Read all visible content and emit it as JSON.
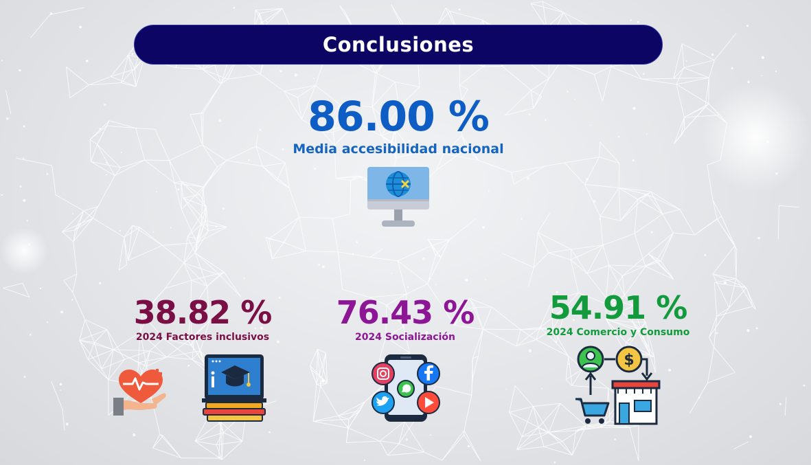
{
  "header": {
    "title": "Conclusiones"
  },
  "kpis": {
    "main": {
      "value": "86.00 %",
      "label": "Media accesibilidad nacional",
      "color": "#0d5dc4"
    },
    "factores": {
      "value": "38.82 %",
      "label": "2024 Factores inclusivos",
      "color": "#7a0f45"
    },
    "socializacion": {
      "value": "76.43 %",
      "label": "2024 Socialización",
      "color": "#8c1696"
    },
    "comercio": {
      "value": "54.91 %",
      "label": "2024 Comercio y Consumo",
      "color": "#139a3c"
    }
  },
  "icons": {
    "main": "monitor-globe-icon",
    "factores": [
      "heart-hand-icon",
      "education-books-icon"
    ],
    "socializacion": "smartphone-social-icon",
    "comercio": "commerce-cycle-icon"
  }
}
